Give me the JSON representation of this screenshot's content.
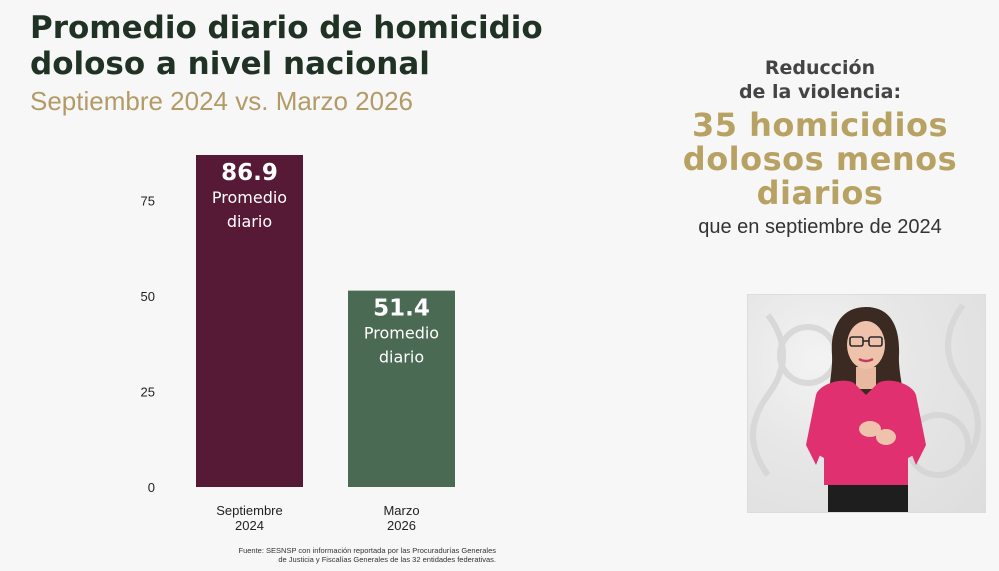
{
  "header": {
    "title": "Promedio diario de homicidio doloso a nivel nacional",
    "subtitle": "Septiembre 2024 vs. Marzo 2026"
  },
  "chart_data": {
    "type": "bar",
    "categories": [
      [
        "Septiembre",
        "2024"
      ],
      [
        "Marzo",
        "2026"
      ]
    ],
    "values": [
      86.9,
      51.4
    ],
    "value_labels": [
      "86.9",
      "51.4"
    ],
    "bar_sublabel": [
      "Promedio",
      "diario"
    ],
    "yticks": [
      0,
      25,
      50,
      75
    ],
    "ylim": [
      0,
      86.9
    ],
    "colors": [
      "#561a36",
      "#4a6a53"
    ],
    "grid": false
  },
  "source": {
    "line1": "Fuente: SESNSP con información reportada por las Procuradurías Generales",
    "line2": "de Justicia y Fiscalías Generales de las 32 entidades federativas."
  },
  "highlight": {
    "line1": "Reducción",
    "line2": "de la violencia:",
    "big1": "35 homicidios",
    "big2": "dolosos menos",
    "big3": "diarios",
    "footer": "que en septiembre de 2024"
  },
  "colors": {
    "title": "#1f3224",
    "accent": "#b8a263",
    "shirt": "#e0306f"
  }
}
